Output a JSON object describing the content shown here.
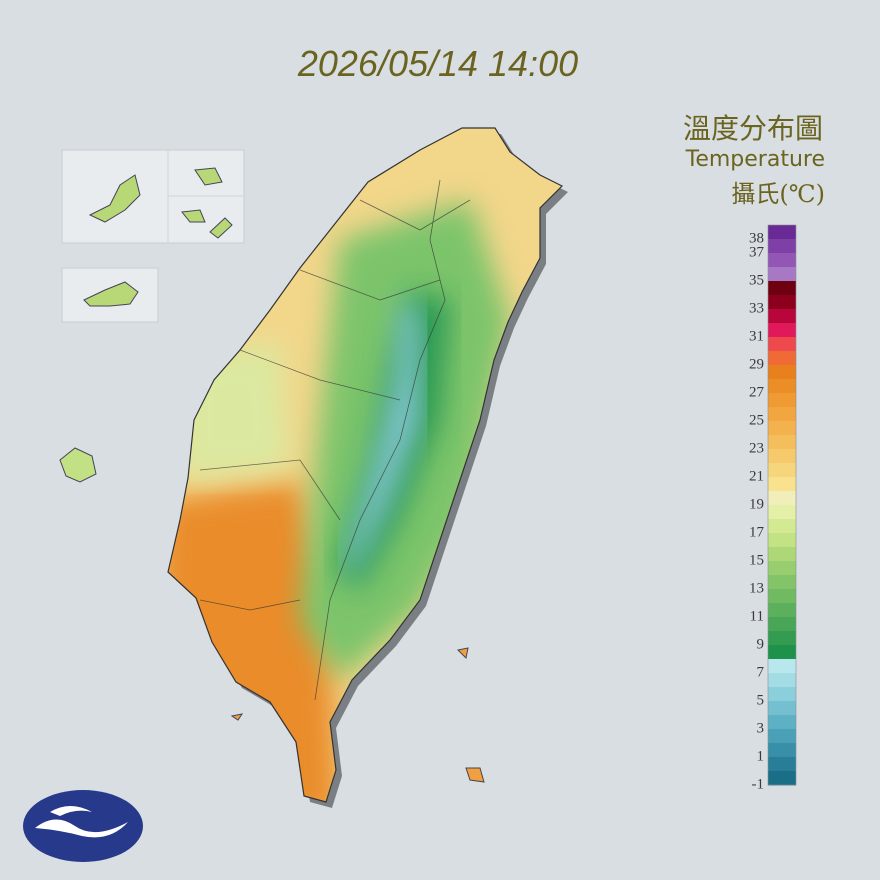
{
  "header": {
    "title": "2026/05/14 14:00"
  },
  "legend": {
    "title_zh": "溫度分布圖",
    "title_en": "Temperature",
    "unit": "攝氏(℃)",
    "range": [
      -1,
      39
    ],
    "labels": [
      38,
      37,
      35,
      33,
      31,
      29,
      27,
      25,
      23,
      21,
      19,
      17,
      15,
      13,
      11,
      9,
      7,
      5,
      3,
      1,
      -1
    ],
    "colors": [
      "#6a2a96",
      "#7e3fa6",
      "#9257b4",
      "#a778c4",
      "#6e0012",
      "#8c001e",
      "#b8063a",
      "#e01a5a",
      "#ee4a4e",
      "#f06a36",
      "#e8801e",
      "#ec8e28",
      "#f09a34",
      "#f2a640",
      "#f4b24e",
      "#f4be5c",
      "#f6ca6c",
      "#f6d67c",
      "#f8e28e",
      "#f2eebc",
      "#e4f0a8",
      "#d4ea92",
      "#c2e284",
      "#aed878",
      "#98ce70",
      "#84c468",
      "#70ba62",
      "#5cb05c",
      "#48a656",
      "#349c50",
      "#1e914a",
      "#b8e8ee",
      "#a4dce6",
      "#8ccfdc",
      "#74c0d0",
      "#5eb0c4",
      "#4aa0b6",
      "#3890a8",
      "#287e98",
      "#1a6e86"
    ]
  }
}
